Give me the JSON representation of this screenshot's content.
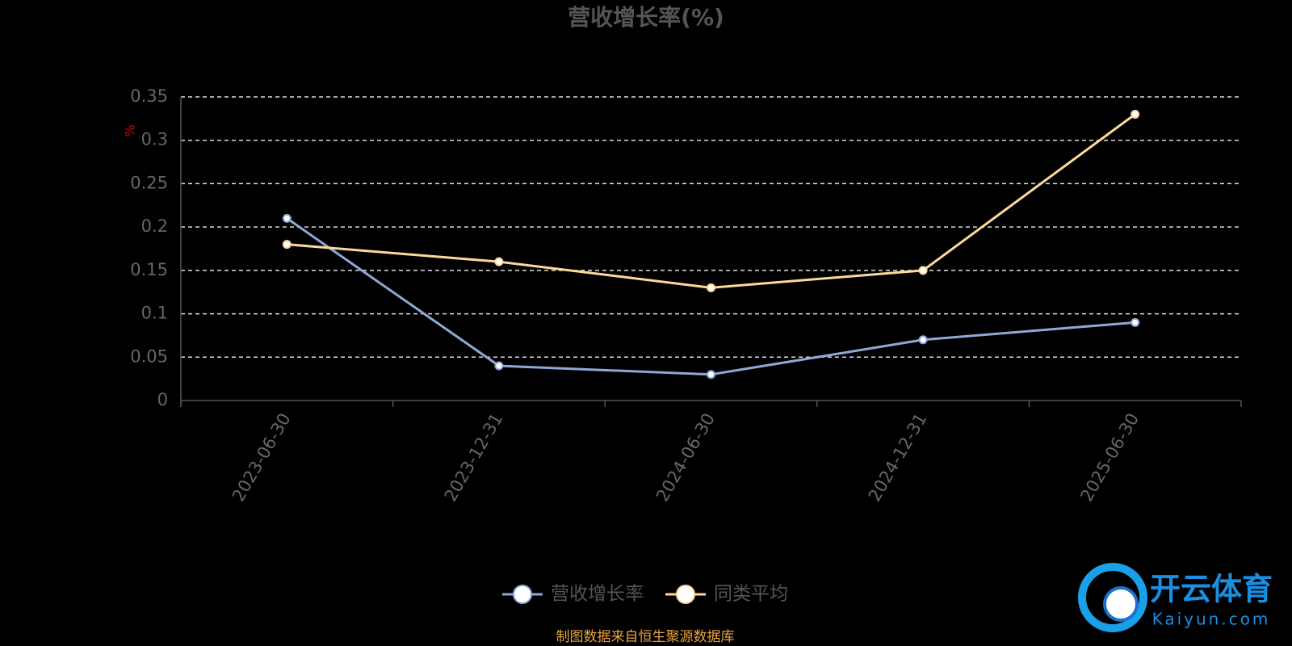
{
  "chart_data": {
    "type": "line",
    "title": "营收增长率(%)",
    "y_unit": "%",
    "categories": [
      "2023-06-30",
      "2023-12-31",
      "2024-06-30",
      "2024-12-31",
      "2025-06-30"
    ],
    "series": [
      {
        "name": "营收增长率",
        "color": "#8fa8d8",
        "values": [
          0.21,
          0.04,
          0.03,
          0.07,
          0.09
        ]
      },
      {
        "name": "同类平均",
        "color": "#fcd89a",
        "values": [
          0.18,
          0.16,
          0.13,
          0.15,
          0.33
        ]
      }
    ],
    "ylim": [
      0,
      0.35
    ],
    "yticks": [
      0,
      0.05,
      0.1,
      0.15,
      0.2,
      0.25,
      0.3,
      0.35
    ],
    "grid": true,
    "source": "制图数据来自恒生聚源数据库"
  },
  "watermark": {
    "name": "开云体育",
    "url": "Kaiyun.com"
  }
}
